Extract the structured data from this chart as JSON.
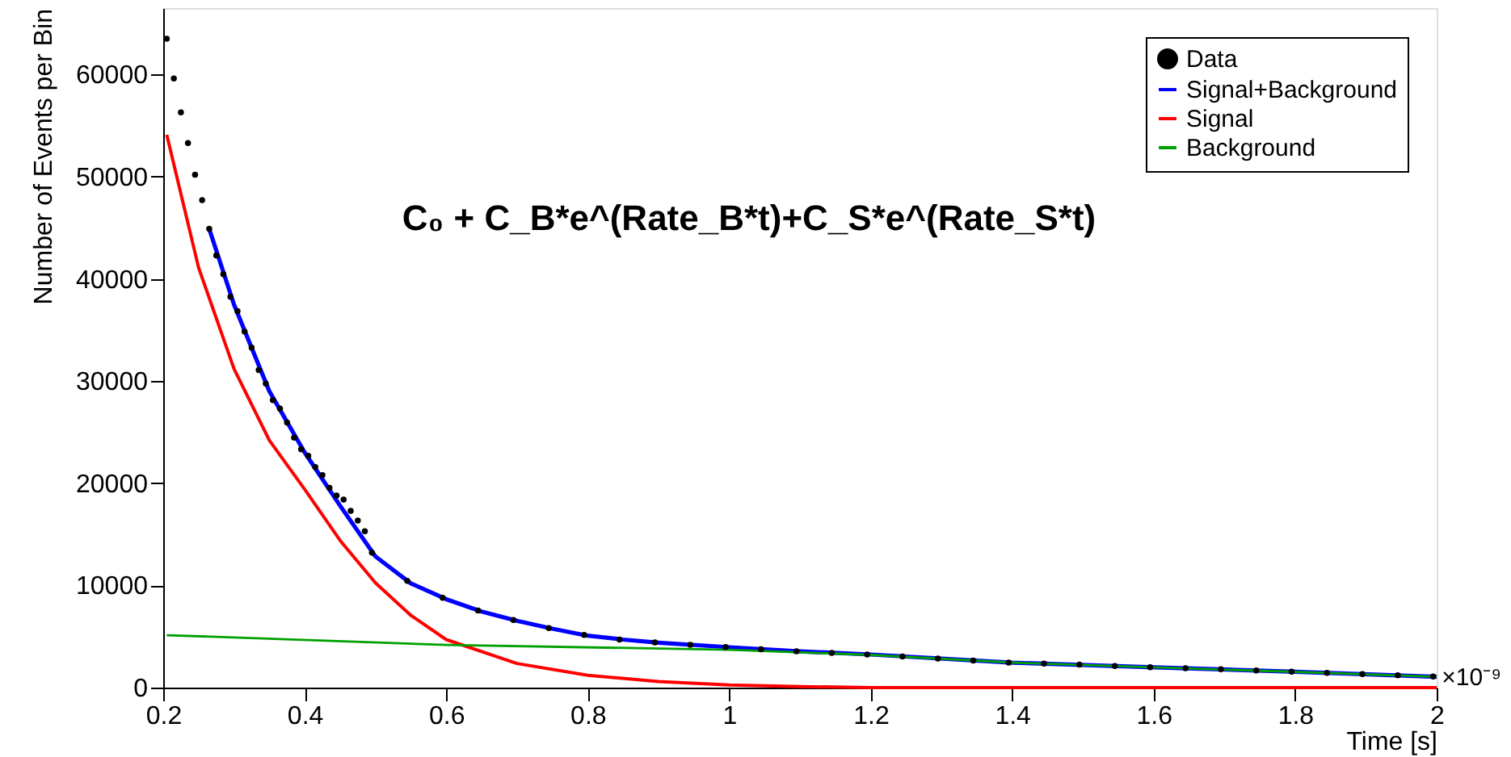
{
  "chart_data": {
    "type": "line",
    "xlabel": "Time [s]",
    "ylabel": "Number of Events per Bin",
    "annotations": [
      "C₀ + C_B*e^(Rate_B*t)+C_S*e^(Rate_S*t)",
      "×10⁻⁹"
    ],
    "xlim": [
      0.2,
      2
    ],
    "xticks": [
      0.2,
      0.4,
      0.6,
      0.8,
      1,
      1.2,
      1.4,
      1.6,
      1.8,
      2
    ],
    "ylim": [
      0,
      66500
    ],
    "yticks": [
      0,
      10000,
      20000,
      30000,
      40000,
      50000,
      60000
    ],
    "grid": false,
    "legend": "top right",
    "series": [
      {
        "name": "Data",
        "type": "scatter",
        "marker": "circle",
        "color": "#000000",
        "x": [
          0.205,
          0.215,
          0.225,
          0.235,
          0.245,
          0.255,
          0.265,
          0.275,
          0.285,
          0.295,
          0.305,
          0.315,
          0.325,
          0.335,
          0.345,
          0.355,
          0.365,
          0.375,
          0.385,
          0.395,
          0.405,
          0.415,
          0.425,
          0.435,
          0.445,
          0.455,
          0.465,
          0.475,
          0.485,
          0.495,
          0.545,
          0.595,
          0.645,
          0.695,
          0.745,
          0.795,
          0.845,
          0.895,
          0.945,
          0.995,
          1.045,
          1.095,
          1.145,
          1.195,
          1.245,
          1.295,
          1.345,
          1.395,
          1.445,
          1.495,
          1.545,
          1.595,
          1.645,
          1.695,
          1.745,
          1.795,
          1.845,
          1.895,
          1.945,
          1.995
        ],
        "values": [
          63500,
          59600,
          56300,
          53300,
          50200,
          47700,
          44900,
          42300,
          40450,
          38250,
          36840,
          34840,
          33270,
          31070,
          29760,
          28140,
          27300,
          25940,
          24470,
          23320,
          22690,
          21590,
          20800,
          19540,
          18800,
          18400,
          17300,
          16350,
          15300,
          13200,
          10450,
          8780,
          7550,
          6620,
          5830,
          5150,
          4700,
          4420,
          4180,
          3960,
          3750,
          3560,
          3390,
          3240,
          3050,
          2850,
          2650,
          2450,
          2350,
          2250,
          2120,
          2000,
          1900,
          1800,
          1680,
          1560,
          1450,
          1330,
          1200,
          1080
        ]
      },
      {
        "name": "Signal+Background",
        "color": "#0000ff",
        "x": [
          0.265,
          0.3,
          0.35,
          0.4,
          0.45,
          0.5,
          0.55,
          0.6,
          0.65,
          0.7,
          0.75,
          0.8,
          0.85,
          0.9,
          1.0,
          1.1,
          1.2,
          1.4,
          1.6,
          1.8,
          2.0
        ],
        "values": [
          44900,
          37500,
          29000,
          23000,
          17800,
          12830,
          10200,
          8650,
          7440,
          6540,
          5760,
          5080,
          4700,
          4400,
          3950,
          3550,
          3240,
          2440,
          1990,
          1550,
          1050
        ]
      },
      {
        "name": "Signal",
        "color": "#ff0000",
        "x": [
          0.205,
          0.25,
          0.3,
          0.35,
          0.4,
          0.45,
          0.5,
          0.55,
          0.6,
          0.7,
          0.8,
          0.9,
          1.0,
          1.1,
          1.2,
          1.6,
          2.0
        ],
        "values": [
          54100,
          41100,
          31200,
          24200,
          19400,
          14400,
          10250,
          7070,
          4700,
          2360,
          1200,
          600,
          250,
          100,
          0,
          0,
          0
        ]
      },
      {
        "name": "Background",
        "color": "#00a000",
        "x": [
          0.205,
          0.6,
          1.0,
          1.2,
          1.4,
          1.6,
          1.8,
          2.0
        ],
        "values": [
          5130,
          4180,
          3700,
          3200,
          2450,
          1980,
          1540,
          1050
        ]
      }
    ]
  }
}
